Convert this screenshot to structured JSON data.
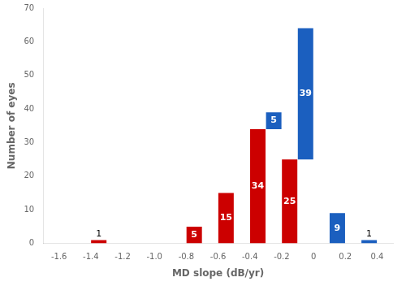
{
  "chart_data": {
    "type": "histogram",
    "xlabel": "MD slope (dB/yr)",
    "ylabel": "Number of eyes",
    "bins": [
      -1.6,
      -1.4,
      -1.2,
      -1.0,
      -0.8,
      -0.6,
      -0.4,
      -0.2,
      0.0,
      0.2,
      0.4
    ],
    "series": [
      {
        "color": "#CC0000",
        "values": [
          0,
          1,
          0,
          0,
          5,
          15,
          34,
          25,
          0,
          0
        ]
      },
      {
        "color": "#1B5FBF",
        "values": [
          0,
          0,
          0,
          0,
          0,
          0,
          5,
          39,
          9,
          1
        ]
      }
    ],
    "stacked": true,
    "data_labels": true,
    "grid": false,
    "xlim": [
      -1.6,
      0.4
    ],
    "xticks": [
      -1.6,
      -1.4,
      -1.2,
      {
        "value": -1.0,
        "label": "-1.0"
      },
      -0.8,
      -0.6,
      -0.4,
      -0.2,
      0,
      0.2,
      0.4
    ],
    "ylim": [
      0,
      70
    ],
    "yticks": [
      0,
      10,
      20,
      30,
      40,
      50,
      60,
      70
    ]
  }
}
